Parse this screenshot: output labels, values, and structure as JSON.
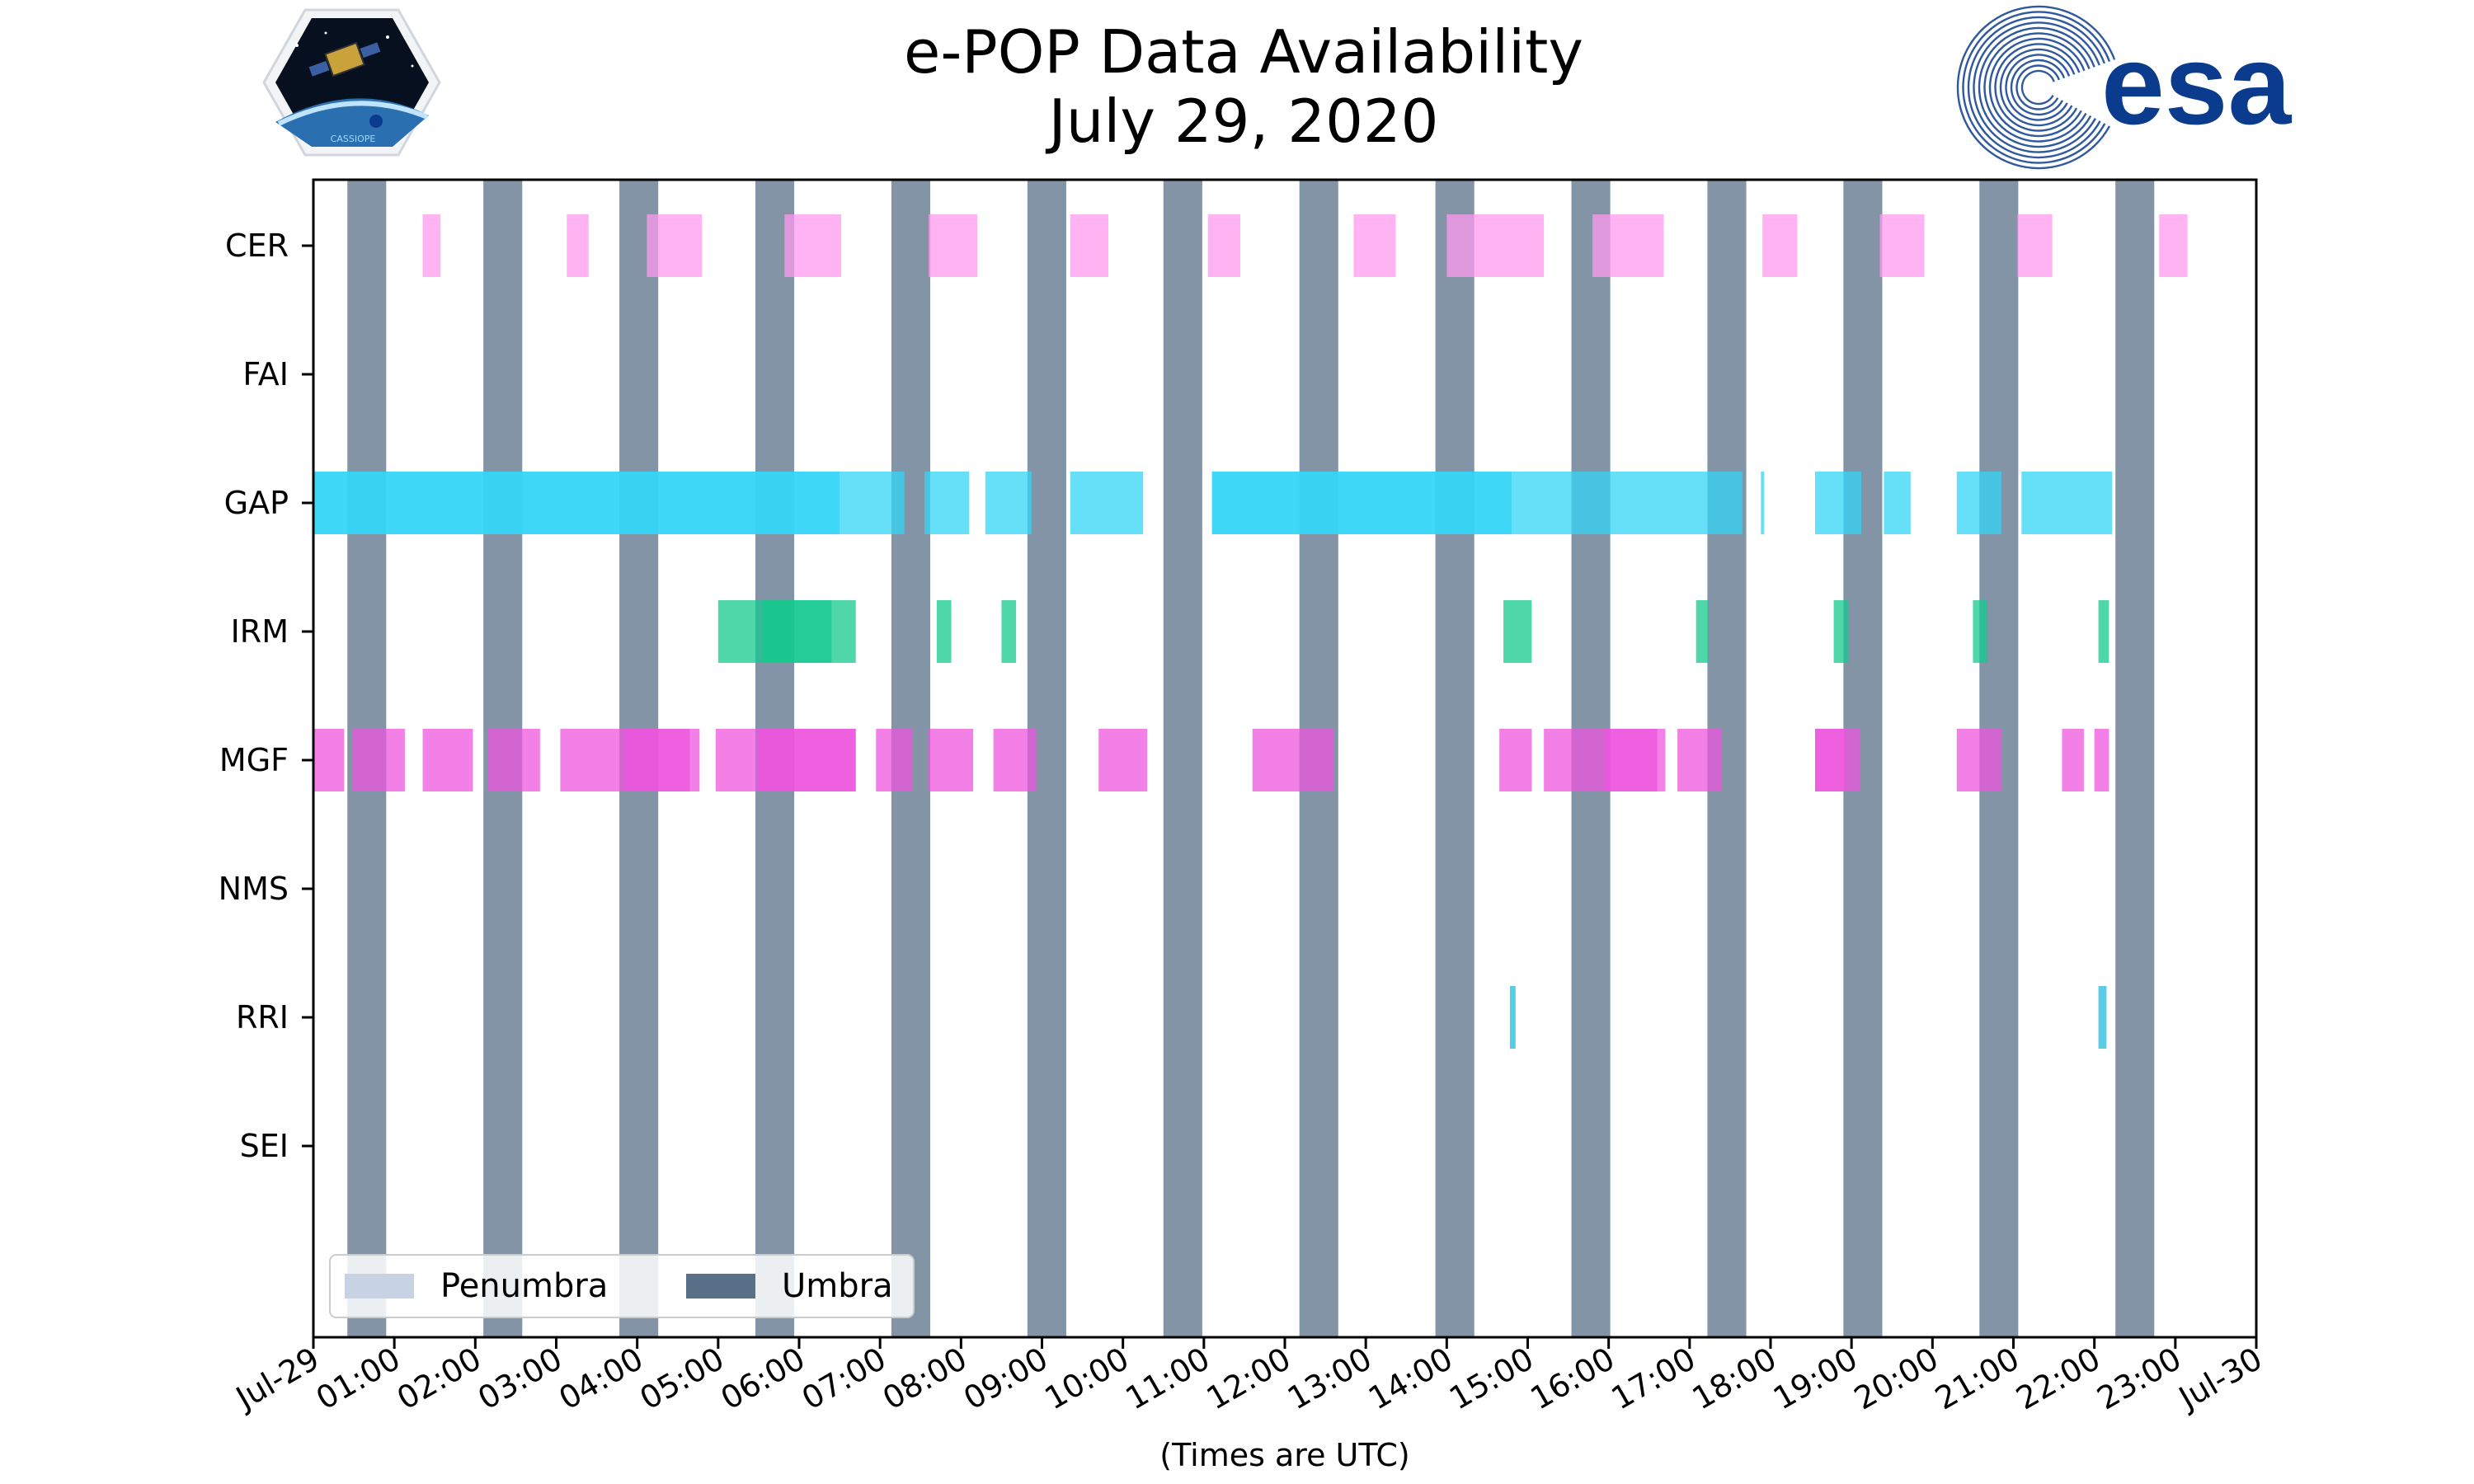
{
  "title": {
    "line1": "e-POP Data Availability",
    "line2": "July 29, 2020"
  },
  "logos": {
    "left": "CASSIOPE",
    "right": "esa"
  },
  "colors": {
    "umbra": "#5a7088",
    "penumbra": "#c7d3e3",
    "CER": "#ff99ee",
    "GAP": "#33d6f7",
    "IRM": "#14c98e",
    "MGF": "#ee55dd",
    "RRI": "#22bbdd",
    "esa_blue": "#0b3b8c"
  },
  "chart_data": {
    "type": "broken_barh",
    "title": "e-POP Data Availability July 29, 2020",
    "xlabel": "(Times are UTC)",
    "ylabel": "",
    "xlim": [
      0,
      24
    ],
    "x_tick_labels": [
      "Jul-29",
      "01:00",
      "02:00",
      "03:00",
      "04:00",
      "05:00",
      "06:00",
      "07:00",
      "08:00",
      "09:00",
      "10:00",
      "11:00",
      "12:00",
      "13:00",
      "14:00",
      "15:00",
      "16:00",
      "17:00",
      "18:00",
      "19:00",
      "20:00",
      "21:00",
      "22:00",
      "23:00",
      "Jul-30"
    ],
    "instruments": [
      "CER",
      "FAI",
      "GAP",
      "IRM",
      "MGF",
      "NMS",
      "RRI",
      "SEI"
    ],
    "umbra_start_hours": [
      0.42,
      2.1,
      3.78,
      5.46,
      7.14,
      8.82,
      10.5,
      12.18,
      13.86,
      15.54,
      17.22,
      18.9,
      20.58,
      22.26
    ],
    "umbra_duration_hours": 0.48,
    "legend": [
      "Penumbra",
      "Umbra"
    ],
    "legend_location": "lower-left",
    "series": [
      {
        "name": "CER",
        "intervals": [
          [
            1.35,
            0.22
          ],
          [
            3.13,
            0.27
          ],
          [
            4.12,
            0.68
          ],
          [
            5.82,
            0.7
          ],
          [
            7.6,
            0.6
          ],
          [
            9.35,
            0.47
          ],
          [
            11.05,
            0.4
          ],
          [
            12.85,
            0.52
          ],
          [
            14.0,
            1.2
          ],
          [
            15.8,
            0.88
          ],
          [
            17.9,
            0.43
          ],
          [
            19.35,
            0.55
          ],
          [
            21.05,
            0.43
          ],
          [
            22.8,
            0.35
          ]
        ]
      },
      {
        "name": "FAI",
        "intervals": []
      },
      {
        "name": "GAP",
        "intervals": [
          [
            0.0,
            6.5
          ],
          [
            0.0,
            7.3
          ],
          [
            7.55,
            0.55
          ],
          [
            8.3,
            0.57
          ],
          [
            9.35,
            0.9
          ],
          [
            11.1,
            1.65
          ],
          [
            12.75,
            2.05
          ],
          [
            11.1,
            6.55
          ],
          [
            17.88,
            0.04
          ],
          [
            18.55,
            0.57
          ],
          [
            19.4,
            0.33
          ],
          [
            20.3,
            0.55
          ],
          [
            21.1,
            1.12
          ]
        ]
      },
      {
        "name": "IRM",
        "intervals": [
          [
            5.0,
            1.7
          ],
          [
            5.55,
            0.85
          ],
          [
            7.7,
            0.18
          ],
          [
            8.5,
            0.18
          ],
          [
            14.7,
            0.35
          ],
          [
            17.08,
            0.15
          ],
          [
            18.78,
            0.18
          ],
          [
            20.5,
            0.18
          ],
          [
            22.05,
            0.13
          ]
        ]
      },
      {
        "name": "MGF",
        "intervals": [
          [
            0.0,
            0.38
          ],
          [
            0.48,
            0.65
          ],
          [
            1.35,
            0.62
          ],
          [
            2.15,
            0.65
          ],
          [
            3.05,
            1.72
          ],
          [
            3.85,
            0.8
          ],
          [
            4.97,
            1.73
          ],
          [
            5.5,
            1.2
          ],
          [
            6.95,
            0.45
          ],
          [
            7.6,
            0.55
          ],
          [
            8.4,
            0.53
          ],
          [
            9.7,
            0.6
          ],
          [
            11.6,
            1.0
          ],
          [
            14.65,
            0.4
          ],
          [
            15.2,
            1.5
          ],
          [
            15.95,
            0.65
          ],
          [
            16.85,
            0.55
          ],
          [
            18.55,
            0.55
          ],
          [
            18.55,
            0.38
          ],
          [
            20.3,
            0.55
          ],
          [
            21.6,
            0.27
          ],
          [
            22.0,
            0.18
          ]
        ]
      },
      {
        "name": "NMS",
        "intervals": []
      },
      {
        "name": "RRI",
        "intervals": [
          [
            14.78,
            0.07
          ],
          [
            22.05,
            0.1
          ]
        ]
      },
      {
        "name": "SEI",
        "intervals": []
      }
    ]
  }
}
